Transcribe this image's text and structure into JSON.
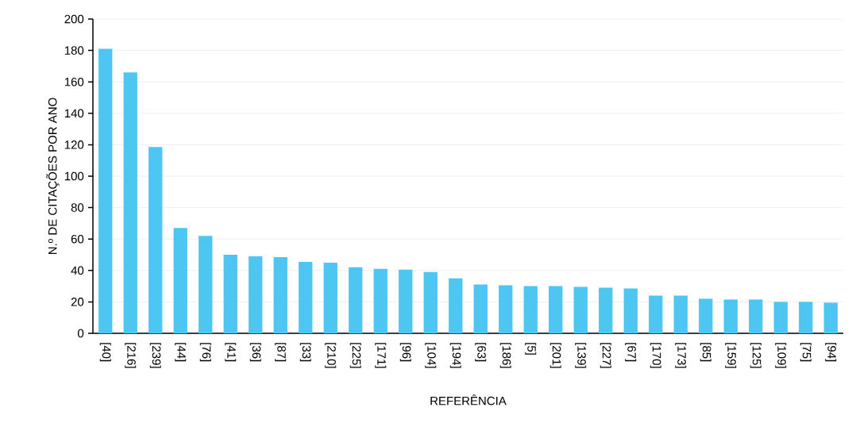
{
  "chart_data": {
    "type": "bar",
    "xlabel": "REFERÊNCIA",
    "ylabel": "N.º DE CITAÇÕES POR ANO",
    "categories": [
      "[40]",
      "[216]",
      "[239]",
      "[44]",
      "[76]",
      "[41]",
      "[36]",
      "[87]",
      "[33]",
      "[210]",
      "[225]",
      "[171]",
      "[96]",
      "[104]",
      "[194]",
      "[63]",
      "[186]",
      "[5]",
      "[201]",
      "[139]",
      "[227]",
      "[67]",
      "[170]",
      "[173]",
      "[85]",
      "[159]",
      "[125]",
      "[109]",
      "[75]",
      "[94]"
    ],
    "values": [
      181,
      166,
      118.5,
      67,
      62,
      50,
      49,
      48.5,
      45.5,
      45,
      42,
      41,
      40.5,
      39,
      35,
      31,
      30.5,
      30,
      30,
      29.5,
      29,
      28.5,
      24,
      24,
      22,
      21.5,
      21.5,
      20,
      20,
      19.5
    ],
    "color": "#4dc6f2",
    "ylim": [
      0,
      200
    ],
    "yticks": [
      0,
      20,
      40,
      60,
      80,
      100,
      120,
      140,
      160,
      180,
      200
    ],
    "grid": "y"
  }
}
